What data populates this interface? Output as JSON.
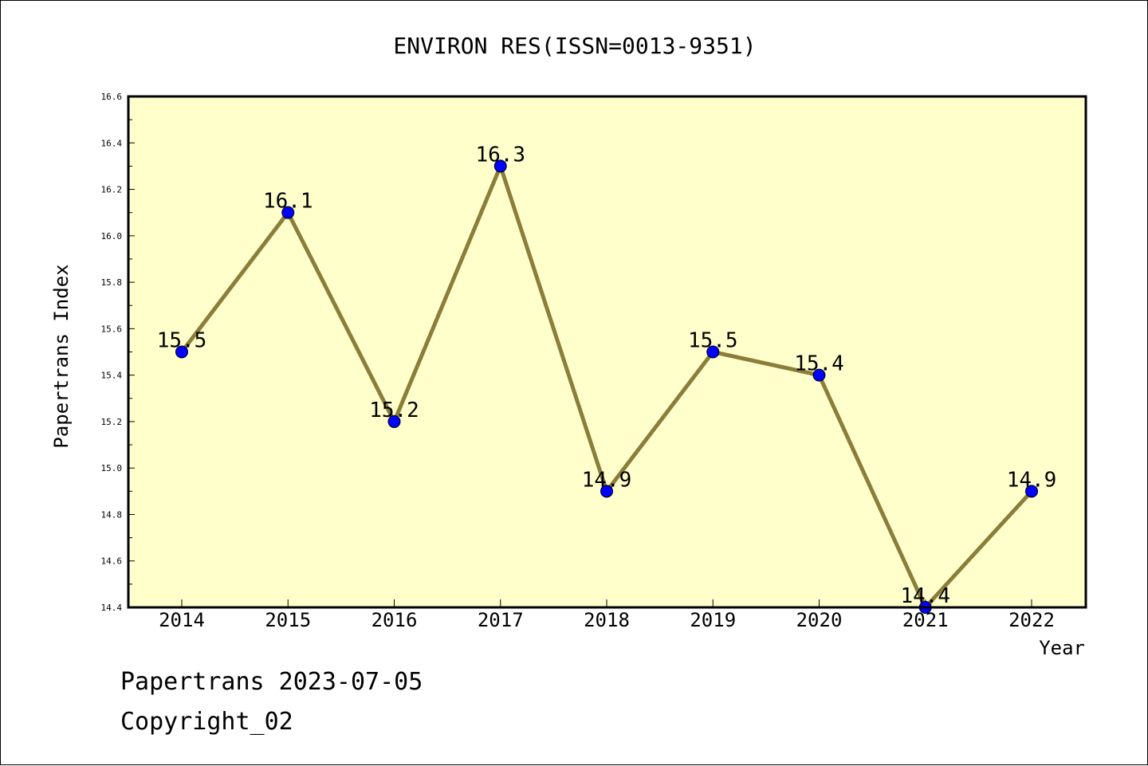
{
  "chart_data": {
    "type": "line",
    "title": "ENVIRON RES(ISSN=0013-9351)",
    "xlabel": "Year",
    "ylabel": "Papertrans Index",
    "categories": [
      "2014",
      "2015",
      "2016",
      "2017",
      "2018",
      "2019",
      "2020",
      "2021",
      "2022"
    ],
    "values": [
      15.5,
      16.1,
      15.2,
      16.3,
      14.9,
      15.5,
      15.4,
      14.4,
      14.9
    ],
    "data_labels": [
      "15.5",
      "16.1",
      "15.2",
      "16.3",
      "14.9",
      "15.5",
      "15.4",
      "14.4",
      "14.9"
    ],
    "ylim": [
      14.4,
      16.6
    ],
    "yticks": [
      "14.4",
      "14.6",
      "14.8",
      "15.0",
      "15.2",
      "15.4",
      "15.6",
      "15.8",
      "16.0",
      "16.2",
      "16.4",
      "16.6"
    ],
    "grid": false,
    "colors": {
      "plot_background": "#ffffcc",
      "line": "#8b7d3a",
      "marker": "#0000ff"
    }
  },
  "footer": {
    "date_line": "Papertrans 2023-07-05",
    "copyright_line": "Copyright_02"
  }
}
